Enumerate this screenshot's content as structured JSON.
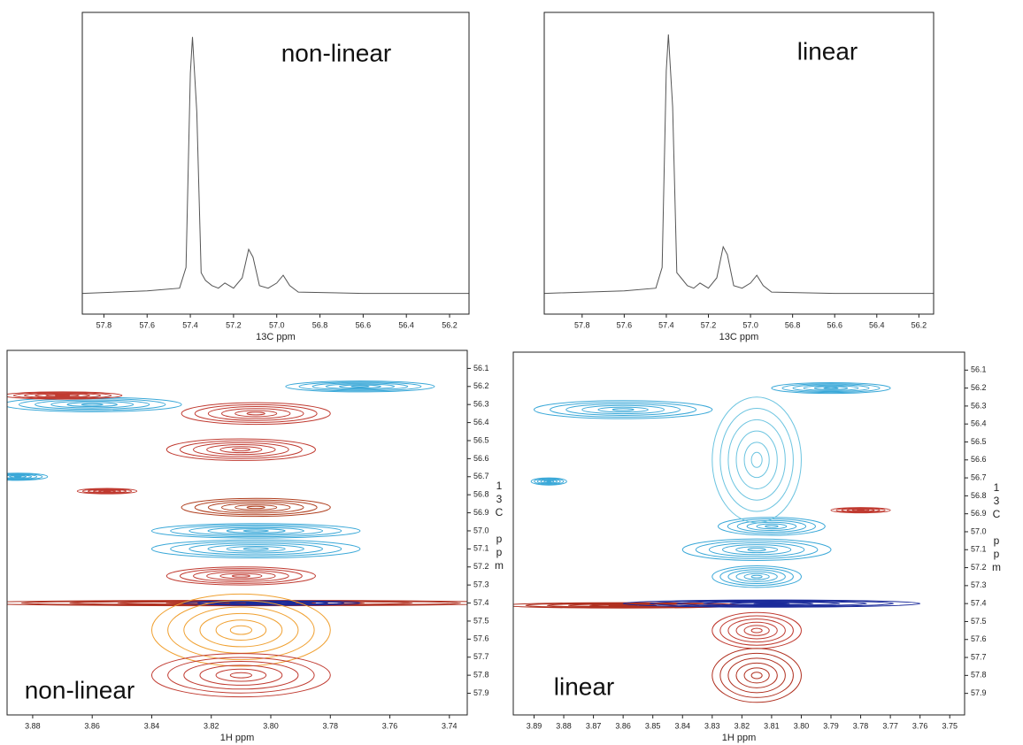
{
  "chart_data": [
    {
      "type": "line",
      "annotation": "non-linear",
      "xlabel": "13C ppm",
      "color": "#555555",
      "xlim": [
        57.9,
        56.11
      ],
      "ylim": [
        -0.08,
        1.085
      ],
      "xticks": [
        57.8,
        57.6,
        57.4,
        57.2,
        {
          "value": 57,
          "label": "57.0"
        },
        56.8,
        56.6,
        56.4,
        56.2
      ],
      "x": [
        57.9,
        57.6,
        57.45,
        57.42,
        57.4,
        57.39,
        57.37,
        57.35,
        57.33,
        57.3,
        57.27,
        57.24,
        57.2,
        57.16,
        57.13,
        57.11,
        57.08,
        57.04,
        57,
        56.97,
        56.94,
        56.9,
        56.6,
        56.11
      ],
      "values": [
        0,
        0.01,
        0.02,
        0.1,
        0.85,
        0.99,
        0.7,
        0.08,
        0.05,
        0.03,
        0.02,
        0.04,
        0.02,
        0.06,
        0.17,
        0.14,
        0.03,
        0.02,
        0.04,
        0.07,
        0.03,
        0.005,
        0,
        0
      ]
    },
    {
      "type": "line",
      "annotation": "linear",
      "xlabel": "13C ppm",
      "color": "#555555",
      "xlim": [
        57.98,
        56.13
      ],
      "ylim": [
        -0.08,
        1.085
      ],
      "xticks": [
        57.8,
        57.6,
        57.4,
        57.2,
        {
          "value": 57,
          "label": "57.0"
        },
        56.8,
        56.6,
        56.4,
        56.2
      ],
      "x": [
        57.98,
        57.6,
        57.45,
        57.42,
        57.4,
        57.39,
        57.37,
        57.35,
        57.33,
        57.3,
        57.27,
        57.24,
        57.2,
        57.16,
        57.13,
        57.11,
        57.08,
        57.04,
        57,
        56.97,
        56.94,
        56.9,
        56.6,
        56.13
      ],
      "values": [
        0,
        0.01,
        0.02,
        0.1,
        0.86,
        1.0,
        0.72,
        0.08,
        0.06,
        0.03,
        0.02,
        0.04,
        0.02,
        0.06,
        0.18,
        0.15,
        0.03,
        0.02,
        0.04,
        0.07,
        0.03,
        0.005,
        0,
        0
      ]
    },
    {
      "type": "contour",
      "annotation": "non-linear",
      "xlabel": "1H ppm",
      "ylabel": "13C ppm",
      "xlim": [
        3.8886,
        3.734
      ],
      "ylim": [
        56.0,
        58.02
      ],
      "xticks": [
        3.88,
        3.86,
        3.84,
        3.82,
        {
          "value": 3.8,
          "label": "3.80"
        },
        3.78,
        3.76,
        3.74
      ],
      "yticks": [
        56.1,
        56.2,
        56.3,
        56.4,
        56.5,
        56.6,
        56.7,
        56.8,
        56.9,
        {
          "value": 57,
          "label": "57.0"
        },
        57.1,
        57.2,
        57.3,
        57.4,
        57.5,
        57.6,
        57.7,
        57.8,
        57.9
      ],
      "peaks": [
        {
          "x": 3.81,
          "y": 57.4,
          "wx": 0.09,
          "wy": 0.015,
          "color": "#b03020"
        },
        {
          "x": 3.8,
          "y": 57.4,
          "wx": 0.03,
          "wy": 0.012,
          "color": "#1a2a9a"
        },
        {
          "x": 3.805,
          "y": 57.1,
          "wx": 0.035,
          "wy": 0.05,
          "color": "#3aa8d8"
        },
        {
          "x": 3.805,
          "y": 57.0,
          "wx": 0.035,
          "wy": 0.04,
          "color": "#3aa8d8"
        },
        {
          "x": 3.805,
          "y": 56.87,
          "wx": 0.025,
          "wy": 0.05,
          "color": "#b04020"
        },
        {
          "x": 3.81,
          "y": 57.55,
          "wx": 0.03,
          "wy": 0.2,
          "color": "#f0a030"
        },
        {
          "x": 3.81,
          "y": 57.8,
          "wx": 0.03,
          "wy": 0.12,
          "color": "#c03a30"
        },
        {
          "x": 3.805,
          "y": 56.35,
          "wx": 0.025,
          "wy": 0.06,
          "color": "#c03a30"
        },
        {
          "x": 3.81,
          "y": 56.55,
          "wx": 0.025,
          "wy": 0.06,
          "color": "#c03a30"
        },
        {
          "x": 3.77,
          "y": 56.2,
          "wx": 0.025,
          "wy": 0.03,
          "color": "#3aa8d8"
        },
        {
          "x": 3.86,
          "y": 56.3,
          "wx": 0.03,
          "wy": 0.04,
          "color": "#3aa8d8"
        },
        {
          "x": 3.87,
          "y": 56.25,
          "wx": 0.02,
          "wy": 0.02,
          "color": "#c03a30"
        },
        {
          "x": 3.885,
          "y": 56.7,
          "wx": 0.01,
          "wy": 0.02,
          "color": "#3aa8d8"
        },
        {
          "x": 3.855,
          "y": 56.78,
          "wx": 0.01,
          "wy": 0.015,
          "color": "#c03a30"
        },
        {
          "x": 3.81,
          "y": 57.25,
          "wx": 0.025,
          "wy": 0.05,
          "color": "#c03a30"
        }
      ]
    },
    {
      "type": "contour",
      "annotation": "linear",
      "xlabel": "1H ppm",
      "ylabel": "13C ppm",
      "xlim": [
        3.897,
        3.745
      ],
      "ylim": [
        56.0,
        58.02
      ],
      "xticks": [
        3.89,
        3.88,
        3.87,
        3.86,
        3.85,
        3.84,
        3.83,
        3.82,
        3.81,
        {
          "value": 3.8,
          "label": "3.80"
        },
        3.79,
        3.78,
        3.77,
        3.76,
        3.75
      ],
      "yticks": [
        56.1,
        56.2,
        56.3,
        56.4,
        56.5,
        56.6,
        56.7,
        56.8,
        56.9,
        {
          "value": 57,
          "label": "57.0"
        },
        57.1,
        57.2,
        57.3,
        57.4,
        57.5,
        57.6,
        57.7,
        57.8,
        57.9
      ],
      "peaks": [
        {
          "x": 3.86,
          "y": 57.41,
          "wx": 0.04,
          "wy": 0.015,
          "color": "#b03020"
        },
        {
          "x": 3.81,
          "y": 57.4,
          "wx": 0.05,
          "wy": 0.02,
          "color": "#1a2a9a"
        },
        {
          "x": 3.815,
          "y": 57.1,
          "wx": 0.025,
          "wy": 0.06,
          "color": "#3aa8d8"
        },
        {
          "x": 3.81,
          "y": 56.97,
          "wx": 0.018,
          "wy": 0.05,
          "color": "#3aa8d8"
        },
        {
          "x": 3.815,
          "y": 57.25,
          "wx": 0.015,
          "wy": 0.06,
          "color": "#3aa8d8"
        },
        {
          "x": 3.815,
          "y": 57.55,
          "wx": 0.015,
          "wy": 0.1,
          "color": "#c03a30"
        },
        {
          "x": 3.815,
          "y": 57.8,
          "wx": 0.015,
          "wy": 0.15,
          "color": "#b03020"
        },
        {
          "x": 3.79,
          "y": 56.2,
          "wx": 0.02,
          "wy": 0.03,
          "color": "#3aa8d8"
        },
        {
          "x": 3.86,
          "y": 56.32,
          "wx": 0.03,
          "wy": 0.05,
          "color": "#3aa8d8"
        },
        {
          "x": 3.815,
          "y": 56.6,
          "wx": 0.015,
          "wy": 0.35,
          "color": "#6cc4e0"
        },
        {
          "x": 3.885,
          "y": 56.72,
          "wx": 0.006,
          "wy": 0.02,
          "color": "#3aa8d8"
        },
        {
          "x": 3.78,
          "y": 56.88,
          "wx": 0.01,
          "wy": 0.015,
          "color": "#c03a30"
        }
      ]
    }
  ]
}
